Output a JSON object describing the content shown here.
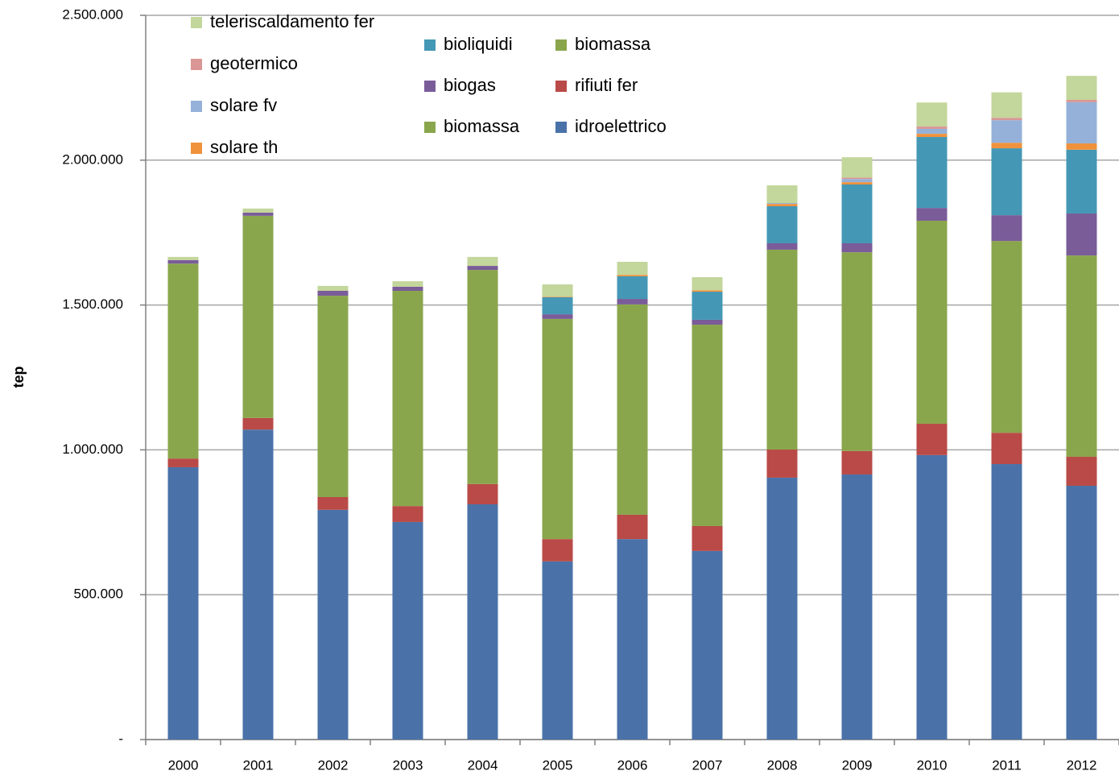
{
  "chart_data": {
    "type": "stacked_bar",
    "y_label": "tep",
    "categories": [
      "2000",
      "2001",
      "2002",
      "2003",
      "2004",
      "2005",
      "2006",
      "2007",
      "2008",
      "2009",
      "2010",
      "2011",
      "2012"
    ],
    "ylim": [
      0,
      2500000
    ],
    "yticks": [
      {
        "value": 0,
        "label": "-"
      },
      {
        "value": 500000,
        "label": "500.000"
      },
      {
        "value": 1000000,
        "label": "1.000.000"
      },
      {
        "value": 1500000,
        "label": "1.500.000"
      },
      {
        "value": 2000000,
        "label": "2.000.000"
      },
      {
        "value": 2500000,
        "label": "2.500.000"
      }
    ],
    "grid": true,
    "series": [
      {
        "name": "idroelettrico",
        "color": "#4a72a8",
        "values": [
          940000,
          1070000,
          793000,
          751000,
          812000,
          615000,
          692000,
          651000,
          904000,
          915000,
          982000,
          951000,
          876000
        ]
      },
      {
        "name": "rifiuti fer",
        "color": "#b94a47",
        "values": [
          30000,
          40000,
          44000,
          55000,
          70000,
          77000,
          84000,
          86000,
          97000,
          81000,
          108000,
          108000,
          100000
        ]
      },
      {
        "name": "biomassa",
        "color": "#8aa64c",
        "values": [
          673000,
          698000,
          695000,
          743000,
          739000,
          760000,
          726000,
          695000,
          690000,
          686000,
          701000,
          662000,
          695000
        ]
      },
      {
        "name": "biomassa",
        "color": "#8aa64c",
        "values": [
          0,
          0,
          0,
          0,
          0,
          0,
          0,
          0,
          0,
          0,
          0,
          0,
          0
        ]
      },
      {
        "name": "biogas",
        "color": "#7a5c99",
        "values": [
          12000,
          11000,
          17000,
          14000,
          14000,
          16000,
          19000,
          17000,
          22000,
          31000,
          44000,
          89000,
          145000
        ]
      },
      {
        "name": "bioliquidi",
        "color": "#4498b5",
        "values": [
          0,
          0,
          0,
          0,
          0,
          59000,
          78000,
          97000,
          128000,
          203000,
          245000,
          231000,
          220000
        ]
      },
      {
        "name": "solare th",
        "color": "#f0923c",
        "values": [
          0,
          0,
          0,
          0,
          0,
          2000,
          5000,
          5000,
          8000,
          8000,
          11000,
          19000,
          22000
        ]
      },
      {
        "name": "solare fv",
        "color": "#95b1d9",
        "values": [
          0,
          0,
          0,
          0,
          0,
          0,
          0,
          0,
          3000,
          11000,
          17000,
          78000,
          142000
        ]
      },
      {
        "name": "geotermico",
        "color": "#d99694",
        "values": [
          0,
          0,
          0,
          0,
          0,
          0,
          0,
          0,
          0,
          5000,
          8000,
          8000,
          8000
        ]
      },
      {
        "name": "teleriscaldamento fer",
        "color": "#c3d69b",
        "values": [
          11000,
          14000,
          17000,
          19000,
          31000,
          42000,
          45000,
          45000,
          61000,
          70000,
          83000,
          88000,
          83000
        ]
      }
    ]
  }
}
